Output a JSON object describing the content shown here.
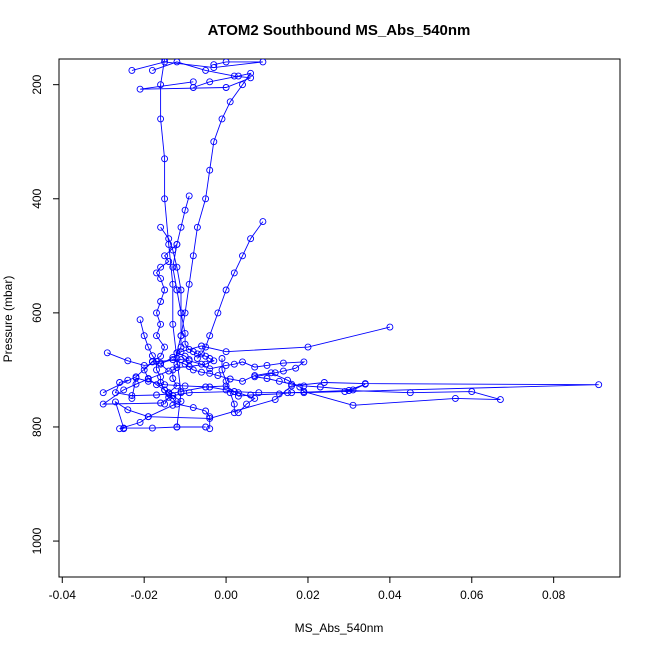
{
  "chart_data": {
    "type": "line",
    "title": "ATOM2 Southbound MS_Abs_540nm",
    "xlabel": "MS_Abs_540nm",
    "ylabel": "Pressure (mbar)",
    "xlim": [
      -0.0408,
      0.0962
    ],
    "ylim": [
      1063,
      155
    ],
    "y_reversed": true,
    "x_ticks": [
      -0.04,
      -0.02,
      0.0,
      0.02,
      0.04,
      0.06,
      0.08
    ],
    "x_tick_labels": [
      "-0.04",
      "-0.02",
      "0.00",
      "0.02",
      "0.04",
      "0.06",
      "0.08"
    ],
    "y_ticks": [
      200,
      400,
      600,
      800,
      1000
    ],
    "y_tick_labels": [
      "200",
      "400",
      "600",
      "800",
      "1000"
    ],
    "grid": false,
    "series_color": "#0000ff",
    "marker": "open-circle",
    "series": [
      {
        "points": [
          [
            -0.018,
            175
          ],
          [
            -0.012,
            160
          ],
          [
            -0.005,
            175
          ],
          [
            0.002,
            185
          ],
          [
            0.006,
            188
          ],
          [
            0.0,
            205
          ],
          [
            -0.021,
            208
          ],
          [
            -0.008,
            195
          ]
        ]
      },
      {
        "points": [
          [
            -0.023,
            175
          ],
          [
            -0.015,
            160
          ],
          [
            -0.003,
            170
          ],
          [
            0.009,
            160
          ],
          [
            0.0,
            160
          ],
          [
            -0.003,
            165
          ]
        ]
      },
      {
        "points": [
          [
            -0.03,
            740
          ],
          [
            -0.022,
            712
          ],
          [
            -0.018,
            686
          ],
          [
            -0.011,
            682
          ],
          [
            -0.009,
            684
          ],
          [
            -0.006,
            690
          ],
          [
            -0.004,
            698
          ],
          [
            0.0,
            692
          ],
          [
            0.002,
            690
          ],
          [
            0.004,
            686
          ],
          [
            0.007,
            695
          ],
          [
            0.01,
            692
          ],
          [
            0.014,
            688
          ],
          [
            0.019,
            686
          ],
          [
            0.017,
            697
          ],
          [
            0.014,
            702
          ],
          [
            0.012,
            705
          ],
          [
            0.007,
            712
          ],
          [
            0.01,
            715
          ],
          [
            0.013,
            720
          ],
          [
            0.016,
            725
          ],
          [
            0.019,
            728
          ],
          [
            0.023,
            730
          ],
          [
            0.031,
            735
          ],
          [
            0.034,
            725
          ],
          [
            0.029,
            738
          ]
        ]
      },
      {
        "points": [
          [
            -0.029,
            670
          ],
          [
            -0.024,
            684
          ],
          [
            -0.02,
            692
          ],
          [
            -0.016,
            688
          ],
          [
            -0.013,
            682
          ],
          [
            -0.01,
            690
          ],
          [
            -0.008,
            700
          ],
          [
            -0.006,
            704
          ],
          [
            -0.004,
            706
          ],
          [
            -0.002,
            710
          ],
          [
            0.001,
            716
          ],
          [
            0.004,
            720
          ],
          [
            0.007,
            710
          ],
          [
            0.011,
            705
          ],
          [
            0.015,
            718
          ],
          [
            0.018,
            730
          ],
          [
            0.019,
            738
          ],
          [
            0.031,
            762
          ],
          [
            0.056,
            750
          ],
          [
            0.067,
            752
          ],
          [
            0.06,
            738
          ],
          [
            0.045,
            740
          ],
          [
            0.03,
            736
          ],
          [
            0.016,
            740
          ],
          [
            0.013,
            742
          ],
          [
            0.006,
            744
          ],
          [
            0.003,
            746
          ],
          [
            0.002,
            738
          ],
          [
            0.0,
            728
          ],
          [
            -0.005,
            730
          ],
          [
            -0.011,
            738
          ],
          [
            -0.014,
            742
          ],
          [
            -0.017,
            744
          ],
          [
            -0.023,
            745
          ],
          [
            -0.027,
            740
          ],
          [
            -0.026,
            722
          ],
          [
            -0.024,
            718
          ]
        ]
      },
      {
        "points": [
          [
            -0.012,
            480
          ],
          [
            -0.015,
            500
          ],
          [
            -0.014,
            510
          ],
          [
            -0.016,
            520
          ],
          [
            -0.017,
            530
          ],
          [
            -0.016,
            540
          ],
          [
            -0.015,
            560
          ],
          [
            -0.016,
            580
          ],
          [
            -0.017,
            600
          ],
          [
            -0.016,
            620
          ],
          [
            -0.017,
            640
          ],
          [
            -0.015,
            660
          ],
          [
            -0.016,
            676
          ],
          [
            -0.018,
            685
          ],
          [
            -0.02,
            700
          ],
          [
            -0.019,
            715
          ],
          [
            -0.017,
            726
          ],
          [
            -0.015,
            735
          ],
          [
            -0.014,
            740
          ],
          [
            -0.013,
            745
          ],
          [
            -0.011,
            755
          ],
          [
            -0.013,
            762
          ],
          [
            -0.019,
            782
          ],
          [
            -0.021,
            792
          ],
          [
            -0.026,
            803
          ],
          [
            -0.025,
            803
          ]
        ]
      },
      {
        "points": [
          [
            -0.016,
            450
          ],
          [
            -0.014,
            470
          ],
          [
            -0.013,
            490
          ],
          [
            -0.012,
            520
          ],
          [
            -0.011,
            560
          ],
          [
            -0.011,
            600
          ],
          [
            -0.01,
            636
          ],
          [
            -0.01,
            655
          ],
          [
            -0.009,
            664
          ],
          [
            -0.008,
            668
          ],
          [
            -0.007,
            672
          ],
          [
            -0.005,
            676
          ],
          [
            -0.004,
            680
          ],
          [
            -0.003,
            684
          ],
          [
            -0.005,
            690
          ],
          [
            -0.009,
            694
          ],
          [
            -0.012,
            696
          ],
          [
            -0.013,
            700
          ],
          [
            -0.013,
            715
          ],
          [
            -0.012,
            728
          ],
          [
            -0.014,
            740
          ],
          [
            -0.013,
            750
          ],
          [
            -0.012,
            760
          ],
          [
            -0.008,
            766
          ],
          [
            -0.005,
            772
          ],
          [
            -0.004,
            782
          ],
          [
            -0.004,
            803
          ]
        ]
      },
      {
        "points": [
          [
            0.04,
            625
          ],
          [
            0.02,
            660
          ],
          [
            0.0,
            668
          ],
          [
            -0.006,
            658
          ],
          [
            -0.011,
            668
          ],
          [
            -0.013,
            678
          ],
          [
            -0.016,
            690
          ],
          [
            -0.014,
            702
          ],
          [
            -0.019,
            716
          ],
          [
            -0.022,
            725
          ],
          [
            -0.025,
            735
          ],
          [
            -0.03,
            760
          ],
          [
            -0.016,
            758
          ],
          [
            -0.013,
            745
          ],
          [
            -0.009,
            740
          ],
          [
            0.002,
            738
          ],
          [
            0.008,
            740
          ],
          [
            0.015,
            740
          ],
          [
            0.019,
            740
          ],
          [
            0.091,
            726
          ],
          [
            0.034,
            724
          ],
          [
            0.024,
            722
          ],
          [
            0.016,
            728
          ],
          [
            0.012,
            752
          ],
          [
            -0.004,
            785
          ],
          [
            -0.019,
            782
          ],
          [
            -0.024,
            770
          ],
          [
            -0.027,
            756
          ],
          [
            -0.025,
            802
          ],
          [
            -0.018,
            802
          ],
          [
            -0.012,
            800
          ],
          [
            -0.005,
            800
          ]
        ]
      },
      {
        "points": [
          [
            -0.021,
            612
          ],
          [
            -0.02,
            640
          ],
          [
            -0.019,
            660
          ],
          [
            -0.018,
            675
          ],
          [
            -0.017,
            685
          ],
          [
            -0.017,
            700
          ],
          [
            -0.016,
            712
          ],
          [
            -0.016,
            722
          ],
          [
            -0.015,
            735
          ],
          [
            -0.014,
            748
          ],
          [
            -0.015,
            760
          ]
        ]
      },
      {
        "points": [
          [
            -0.009,
            395
          ],
          [
            -0.01,
            420
          ],
          [
            -0.011,
            450
          ],
          [
            -0.012,
            480
          ],
          [
            -0.013,
            520
          ],
          [
            -0.012,
            560
          ],
          [
            -0.011,
            600
          ],
          [
            -0.011,
            640
          ],
          [
            -0.011,
            660
          ],
          [
            -0.012,
            670
          ],
          [
            -0.01,
            676
          ],
          [
            -0.009,
            682
          ]
        ]
      },
      {
        "points": [
          [
            0.009,
            440
          ],
          [
            0.006,
            470
          ],
          [
            0.004,
            500
          ],
          [
            0.002,
            530
          ],
          [
            0.0,
            560
          ],
          [
            -0.002,
            600
          ],
          [
            -0.004,
            640
          ],
          [
            -0.005,
            660
          ],
          [
            -0.006,
            672
          ],
          [
            -0.007,
            680
          ]
        ]
      },
      {
        "points": [
          [
            0.003,
            775
          ],
          [
            0.005,
            760
          ],
          [
            0.007,
            750
          ],
          [
            0.003,
            740
          ],
          [
            0.0,
            735
          ],
          [
            -0.004,
            730
          ],
          [
            -0.01,
            728
          ],
          [
            -0.015,
            726
          ],
          [
            -0.019,
            720
          ],
          [
            -0.022,
            714
          ],
          [
            -0.023,
            750
          ]
        ]
      },
      {
        "points": [
          [
            -0.008,
            205
          ],
          [
            -0.004,
            195
          ],
          [
            0.003,
            185
          ],
          [
            0.006,
            180
          ],
          [
            0.004,
            200
          ],
          [
            0.001,
            230
          ],
          [
            -0.001,
            260
          ],
          [
            -0.003,
            300
          ],
          [
            -0.004,
            350
          ],
          [
            -0.005,
            400
          ],
          [
            -0.007,
            450
          ],
          [
            -0.008,
            500
          ],
          [
            -0.009,
            550
          ],
          [
            -0.01,
            600
          ],
          [
            -0.011,
            640
          ],
          [
            -0.012,
            670
          ],
          [
            -0.012,
            690
          ]
        ]
      },
      {
        "points": [
          [
            -0.015,
            155
          ],
          [
            -0.016,
            200
          ],
          [
            -0.016,
            260
          ],
          [
            -0.015,
            330
          ],
          [
            -0.015,
            400
          ],
          [
            -0.014,
            480
          ],
          [
            -0.013,
            550
          ],
          [
            -0.013,
            620
          ],
          [
            -0.012,
            680
          ],
          [
            -0.011,
            740
          ],
          [
            -0.012,
            800
          ]
        ]
      },
      {
        "points": [
          [
            0.002,
            775
          ],
          [
            0.002,
            760
          ],
          [
            0.001,
            740
          ],
          [
            0.0,
            720
          ],
          [
            -0.001,
            700
          ],
          [
            -0.001,
            680
          ]
        ]
      }
    ]
  }
}
